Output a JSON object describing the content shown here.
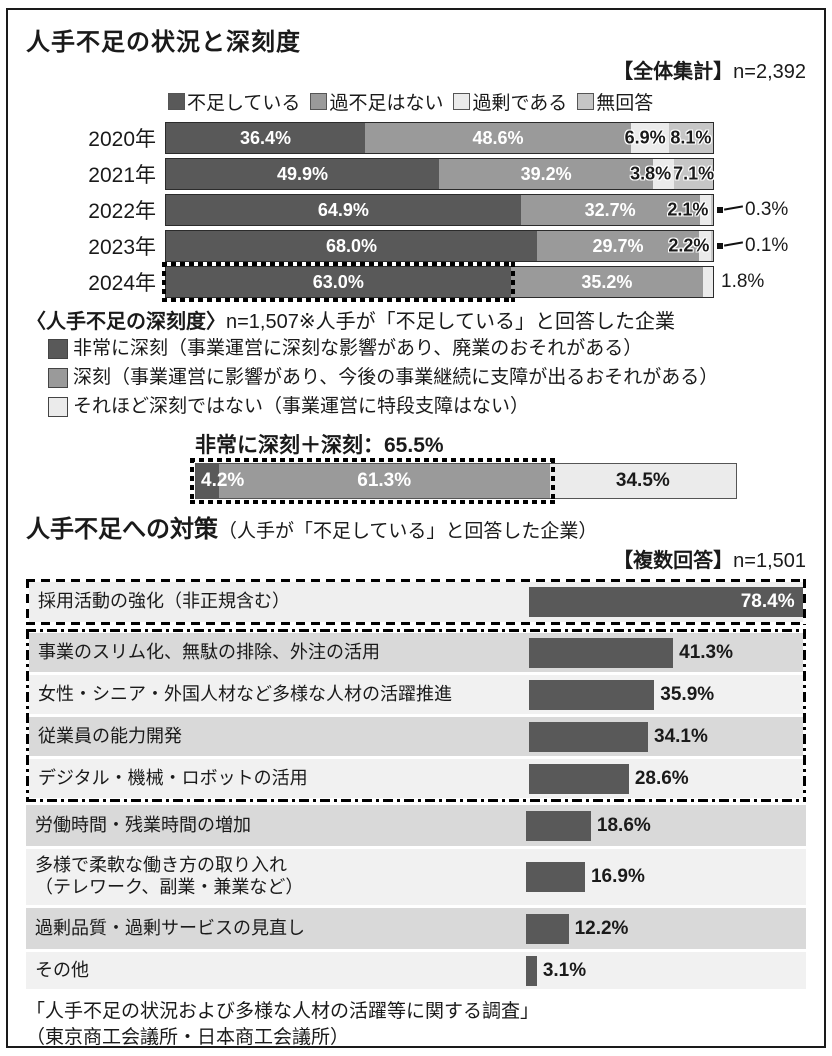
{
  "sections": {
    "s1": {
      "title": "人手不足の状況と深刻度",
      "note_bracket": "【全体集計】",
      "note_value": "n=2,392"
    },
    "severity": {
      "heading_bold": "〈人手不足の深刻度〉",
      "heading_rest": "n=1,507※人手が「不足している」と回答した企業",
      "annotation": "非常に深刻＋深刻：65.5%"
    },
    "s2": {
      "title": "人手不足への対策",
      "title_paren": "（人手が「不足している」と回答した企業）",
      "note_bracket": "【複数回答】",
      "note_value": "n=1,501"
    },
    "footer": {
      "line1": "「人手不足の状況および多様な人材の活躍等に関する調査」",
      "line2": "（東京商工会議所・日本商工会議所）"
    }
  },
  "colors": {
    "dark": "#595959",
    "medium": "#9a9a9a",
    "light": "#ebebeb",
    "gray": "#c6c6c6",
    "row_dark": "#d9d9d9",
    "row_light": "#f1f1f1",
    "row_first": "#efefef",
    "bar": "#595959",
    "border": "#1a1a1a"
  },
  "chart_data": [
    {
      "type": "bar",
      "subtype": "stacked_horizontal_100",
      "title": "人手不足の状況と深刻度",
      "note": "【全体集計】n=2,392",
      "xlim": [
        0,
        100
      ],
      "unit": "%",
      "legend": [
        {
          "name": "不足している",
          "color": "#595959"
        },
        {
          "name": "過不足はない",
          "color": "#9a9a9a"
        },
        {
          "name": "過剰である",
          "color": "#ebebeb"
        },
        {
          "name": "無回答",
          "color": "#c6c6c6"
        }
      ],
      "categories": [
        "2020年",
        "2021年",
        "2022年",
        "2023年",
        "2024年"
      ],
      "series": [
        {
          "name": "不足している",
          "values": [
            36.4,
            49.9,
            64.9,
            68.0,
            63.0
          ]
        },
        {
          "name": "過不足はない",
          "values": [
            48.6,
            39.2,
            32.7,
            29.7,
            35.2
          ]
        },
        {
          "name": "過剰である",
          "values": [
            6.9,
            3.8,
            2.1,
            2.2,
            1.8
          ]
        },
        {
          "name": "無回答",
          "values": [
            8.1,
            7.1,
            0.3,
            0.1,
            0
          ]
        }
      ],
      "callouts": [
        {
          "category": "2022年",
          "series": "無回答",
          "label": "0.3%"
        },
        {
          "category": "2023年",
          "series": "無回答",
          "label": "0.1%"
        }
      ],
      "outside_labels": [
        {
          "category": "2024年",
          "series": "過剰である",
          "label": "1.8%"
        }
      ],
      "highlight": {
        "category": "2024年",
        "series": "不足している",
        "style": "黒破線枠で強調"
      }
    },
    {
      "type": "bar",
      "subtype": "stacked_horizontal_100",
      "title": "人手不足の深刻度",
      "n": "n=1,507",
      "annotation": "非常に深刻＋深刻：65.5%",
      "legend": [
        {
          "name": "非常に深刻（事業運営に深刻な影響があり、廃業のおそれがある）",
          "color": "#595959"
        },
        {
          "name": "深刻（事業運営に影響があり、今後の事業継続に支障が出るおそれがある）",
          "color": "#9a9a9a"
        },
        {
          "name": "それほど深刻ではない（事業運営に特段支障はない）",
          "color": "#ebebeb"
        }
      ],
      "categories": [
        "人手不足の深刻度"
      ],
      "series": [
        {
          "name": "非常に深刻",
          "values": [
            4.2
          ]
        },
        {
          "name": "深刻",
          "values": [
            61.3
          ]
        },
        {
          "name": "それほど深刻ではない",
          "values": [
            34.5
          ]
        }
      ],
      "highlight": {
        "segments": [
          "非常に深刻",
          "深刻"
        ],
        "style": "黒破線枠で強調"
      }
    },
    {
      "type": "bar",
      "subtype": "horizontal",
      "title": "人手不足への対策（人手が「不足している」と回答した企業）",
      "note": "【複数回答】n=1,501",
      "unit": "%",
      "categories": [
        "採用活動の強化（非正規含む）",
        "事業のスリム化、無駄の排除、外注の活用",
        "女性・シニア・外国人材など多様な人材の活躍推進",
        "従業員の能力開発",
        "デジタル・機械・ロボットの活用",
        "労働時間・残業時間の増加",
        "多様で柔軟な働き方の取り入れ\n（テレワーク、副業・兼業など）",
        "過剰品質・過剰サービスの見直し",
        "その他"
      ],
      "values": [
        78.4,
        41.3,
        35.9,
        34.1,
        28.6,
        18.6,
        16.9,
        12.2,
        3.1
      ],
      "highlights": {
        "dashed_box": [
          "採用活動の強化（非正規含む）"
        ],
        "dashdot_box": [
          "事業のスリム化、無駄の排除、外注の活用",
          "女性・シニア・外国人材など多様な人材の活躍推進",
          "従業員の能力開発",
          "デジタル・機械・ロボットの活用"
        ]
      }
    }
  ]
}
